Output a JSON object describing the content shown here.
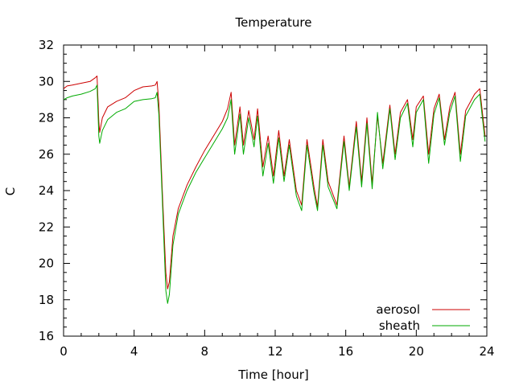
{
  "chart_data": {
    "type": "line",
    "title": "Temperature",
    "xlabel": "Time [hour]",
    "ylabel": "C",
    "xlim": [
      0,
      24
    ],
    "ylim": [
      16,
      32
    ],
    "x_ticks": [
      "0",
      "4",
      "8",
      "12",
      "16",
      "20",
      "24"
    ],
    "y_ticks": [
      "16",
      "18",
      "20",
      "22",
      "24",
      "26",
      "28",
      "30",
      "32"
    ],
    "grid": false,
    "legend_position": "bottom-right",
    "series": [
      {
        "name": "aerosol",
        "color": "#cc0000",
        "points": [
          [
            0,
            29.6
          ],
          [
            0.2,
            29.75
          ],
          [
            0.5,
            29.8
          ],
          [
            1.0,
            29.9
          ],
          [
            1.5,
            30.0
          ],
          [
            1.8,
            30.2
          ],
          [
            1.9,
            30.3
          ],
          [
            2.0,
            27.8
          ],
          [
            2.05,
            27.2
          ],
          [
            2.2,
            28.0
          ],
          [
            2.5,
            28.6
          ],
          [
            3.0,
            28.9
          ],
          [
            3.5,
            29.1
          ],
          [
            4.0,
            29.5
          ],
          [
            4.5,
            29.7
          ],
          [
            5.0,
            29.75
          ],
          [
            5.2,
            29.8
          ],
          [
            5.3,
            30.0
          ],
          [
            5.4,
            28.8
          ],
          [
            5.6,
            24.0
          ],
          [
            5.8,
            19.5
          ],
          [
            5.9,
            18.6
          ],
          [
            6.0,
            19.0
          ],
          [
            6.2,
            21.5
          ],
          [
            6.5,
            23.0
          ],
          [
            7.0,
            24.3
          ],
          [
            7.5,
            25.3
          ],
          [
            8.0,
            26.2
          ],
          [
            8.5,
            27.0
          ],
          [
            9.0,
            27.8
          ],
          [
            9.3,
            28.5
          ],
          [
            9.5,
            29.4
          ],
          [
            9.7,
            26.5
          ],
          [
            10.0,
            28.6
          ],
          [
            10.2,
            26.5
          ],
          [
            10.5,
            28.4
          ],
          [
            10.8,
            26.8
          ],
          [
            11.0,
            28.5
          ],
          [
            11.3,
            25.3
          ],
          [
            11.6,
            27.0
          ],
          [
            11.9,
            24.8
          ],
          [
            12.2,
            27.3
          ],
          [
            12.5,
            24.8
          ],
          [
            12.8,
            26.8
          ],
          [
            13.2,
            24.0
          ],
          [
            13.5,
            23.2
          ],
          [
            13.8,
            26.8
          ],
          [
            14.2,
            24.2
          ],
          [
            14.4,
            23.1
          ],
          [
            14.7,
            26.8
          ],
          [
            15.0,
            24.5
          ],
          [
            15.5,
            23.2
          ],
          [
            15.9,
            27.0
          ],
          [
            16.2,
            24.2
          ],
          [
            16.6,
            27.8
          ],
          [
            16.9,
            24.5
          ],
          [
            17.2,
            28.0
          ],
          [
            17.5,
            24.4
          ],
          [
            17.8,
            28.1
          ],
          [
            18.1,
            25.5
          ],
          [
            18.5,
            28.7
          ],
          [
            18.8,
            26.0
          ],
          [
            19.1,
            28.3
          ],
          [
            19.5,
            29.0
          ],
          [
            19.8,
            26.8
          ],
          [
            20.0,
            28.6
          ],
          [
            20.4,
            29.2
          ],
          [
            20.7,
            26.0
          ],
          [
            21.0,
            28.5
          ],
          [
            21.3,
            29.3
          ],
          [
            21.6,
            26.8
          ],
          [
            21.9,
            28.6
          ],
          [
            22.2,
            29.4
          ],
          [
            22.5,
            26.0
          ],
          [
            22.8,
            28.4
          ],
          [
            23.3,
            29.3
          ],
          [
            23.6,
            29.6
          ],
          [
            23.9,
            27.0
          ]
        ]
      },
      {
        "name": "sheath",
        "color": "#00aa00",
        "points": [
          [
            0,
            29.0
          ],
          [
            0.2,
            29.1
          ],
          [
            0.5,
            29.2
          ],
          [
            1.0,
            29.3
          ],
          [
            1.5,
            29.45
          ],
          [
            1.8,
            29.6
          ],
          [
            1.9,
            29.8
          ],
          [
            2.0,
            27.0
          ],
          [
            2.05,
            26.6
          ],
          [
            2.2,
            27.3
          ],
          [
            2.5,
            27.9
          ],
          [
            3.0,
            28.3
          ],
          [
            3.5,
            28.5
          ],
          [
            4.0,
            28.9
          ],
          [
            4.5,
            29.0
          ],
          [
            5.0,
            29.05
          ],
          [
            5.2,
            29.1
          ],
          [
            5.3,
            29.4
          ],
          [
            5.4,
            28.2
          ],
          [
            5.6,
            23.5
          ],
          [
            5.8,
            18.5
          ],
          [
            5.9,
            17.8
          ],
          [
            6.0,
            18.3
          ],
          [
            6.2,
            21.0
          ],
          [
            6.5,
            22.7
          ],
          [
            7.0,
            24.0
          ],
          [
            7.5,
            25.0
          ],
          [
            8.0,
            25.8
          ],
          [
            8.5,
            26.6
          ],
          [
            9.0,
            27.4
          ],
          [
            9.3,
            28.0
          ],
          [
            9.5,
            29.0
          ],
          [
            9.7,
            26.0
          ],
          [
            10.0,
            28.2
          ],
          [
            10.2,
            26.0
          ],
          [
            10.5,
            28.0
          ],
          [
            10.8,
            26.4
          ],
          [
            11.0,
            28.1
          ],
          [
            11.3,
            24.8
          ],
          [
            11.6,
            26.6
          ],
          [
            11.9,
            24.4
          ],
          [
            12.2,
            26.9
          ],
          [
            12.5,
            24.5
          ],
          [
            12.8,
            26.5
          ],
          [
            13.2,
            23.7
          ],
          [
            13.5,
            22.9
          ],
          [
            13.8,
            26.5
          ],
          [
            14.2,
            23.9
          ],
          [
            14.4,
            22.9
          ],
          [
            14.7,
            26.5
          ],
          [
            15.0,
            24.2
          ],
          [
            15.5,
            23.0
          ],
          [
            15.9,
            26.7
          ],
          [
            16.2,
            24.0
          ],
          [
            16.6,
            27.5
          ],
          [
            16.9,
            24.2
          ],
          [
            17.2,
            27.7
          ],
          [
            17.5,
            24.1
          ],
          [
            17.8,
            28.3
          ],
          [
            18.1,
            25.2
          ],
          [
            18.5,
            28.5
          ],
          [
            18.8,
            25.7
          ],
          [
            19.1,
            28.0
          ],
          [
            19.5,
            28.8
          ],
          [
            19.8,
            26.4
          ],
          [
            20.0,
            28.3
          ],
          [
            20.4,
            29.0
          ],
          [
            20.7,
            25.5
          ],
          [
            21.0,
            28.2
          ],
          [
            21.3,
            29.1
          ],
          [
            21.6,
            26.5
          ],
          [
            21.9,
            28.3
          ],
          [
            22.2,
            29.2
          ],
          [
            22.5,
            25.6
          ],
          [
            22.8,
            28.1
          ],
          [
            23.3,
            29.0
          ],
          [
            23.6,
            29.3
          ],
          [
            23.9,
            26.7
          ]
        ]
      }
    ]
  }
}
